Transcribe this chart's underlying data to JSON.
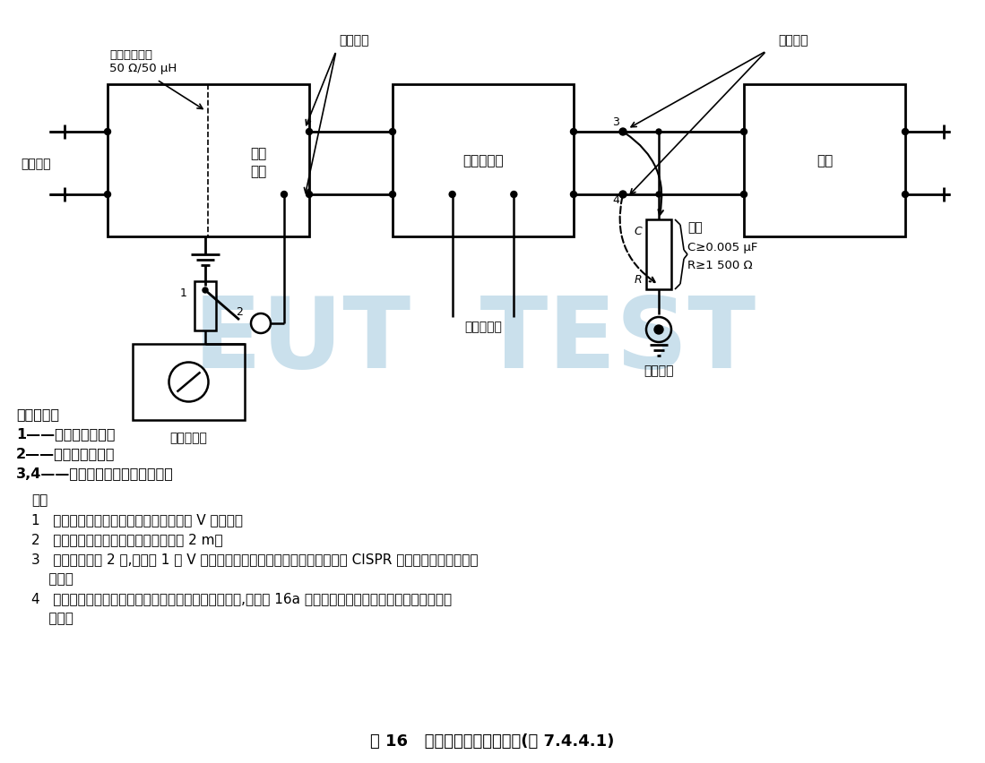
{
  "title": "图 16   用电压探头测量的示例(见 7.4.4.1)",
  "watermark": "EUT  TEST",
  "watermark_color": "#a8cce0",
  "background": "#ffffff",
  "label_lisn_line1": "人工电源网络",
  "label_lisn_line2": "50 Ω/50 μH",
  "label_isolation_line1": "隔离",
  "label_isolation_line2": "装置",
  "label_power_voltage": "电源电压",
  "label_power_terminal": "电源端子",
  "label_controller": "调节控制器",
  "label_load": "负载",
  "label_load_terminal": "负载端子",
  "label_receiver": "测量接收机",
  "label_coax": "同轴电缆",
  "label_probe": "探头",
  "label_C": "C",
  "label_R": "R",
  "label_probe_spec1": "C≥0.005 μF",
  "label_probe_spec2": "R≥1 500 Ω",
  "label_control": "至通控元件",
  "label_switch": "开关位置：",
  "label_sw1": "1——用于电源测量；",
  "label_sw2": "2——用于负载测量；",
  "label_sw34": "3,4——负载测量中依次的连接点。",
  "label_note": "注：",
  "note1": "1   测量接收机的接地端应连接到人工电源 V 形网络。",
  "note2": "2   从探头算起同轴电缆的长度不得超过 2 m。",
  "note3_line1": "3   当开关在位置 2 时,在终端 1 的 V 形人工电源网络的输出端应该端接一个与 CISPR 测量接收机阻抗等值的",
  "note3_line2": "    阻抗。",
  "note4_line1": "4   在只有一根电源导线上插入两端调节控制器的情况下,应如图 16a 中所示的那样连接上第二根电源线来进行",
  "note4_line2": "    测量。"
}
